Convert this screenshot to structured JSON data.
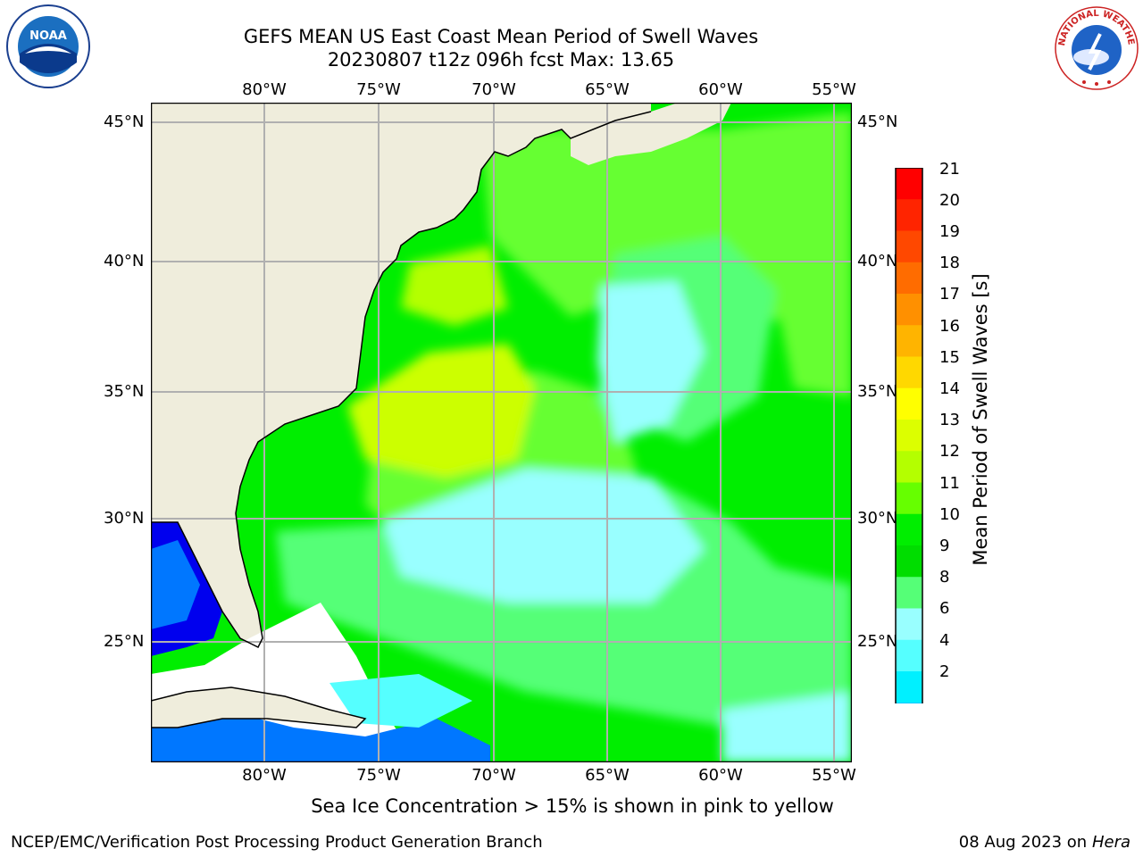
{
  "header": {
    "title_line1": "GEFS MEAN US East Coast Mean Period of Swell Waves",
    "title_line2": "20230807 t12z 096h fcst   Max: 13.65"
  },
  "map": {
    "lon_labels": [
      "80°W",
      "75°W",
      "70°W",
      "65°W",
      "60°W",
      "55°W"
    ],
    "lat_labels": [
      "45°N",
      "40°N",
      "35°N",
      "30°N",
      "25°N"
    ],
    "region": "US East Coast / Western North Atlantic",
    "land_color": "#efeddc",
    "grid_color": "#b0b0b0"
  },
  "colorbar": {
    "title": "Mean Period of Swell Waves [s]",
    "ticks": [
      "21",
      "20",
      "19",
      "18",
      "17",
      "16",
      "15",
      "14",
      "13",
      "12",
      "11",
      "10",
      "9",
      "8",
      "6",
      "4",
      "2"
    ],
    "colors": [
      "#ff0000",
      "#ff2400",
      "#ff4800",
      "#ff6c00",
      "#ff9000",
      "#ffb400",
      "#ffd800",
      "#ffff00",
      "#dcff00",
      "#b4ff00",
      "#66ff00",
      "#00ee00",
      "#00dd00",
      "#55ff77",
      "#99ffff",
      "#55ffff",
      "#00f0ff",
      "#00bbff",
      "#0077ff",
      "#0000ee"
    ]
  },
  "note": "Sea Ice Concentration > 15% is shown in pink to yellow",
  "footer": {
    "left": "NCEP/EMC/Verification Post Processing Product Generation Branch",
    "date": "08 Aug 2023 on",
    "machine": "Hera"
  },
  "logos": {
    "noaa": "NOAA",
    "nws": "NATIONAL WEATHER SERVICE"
  }
}
